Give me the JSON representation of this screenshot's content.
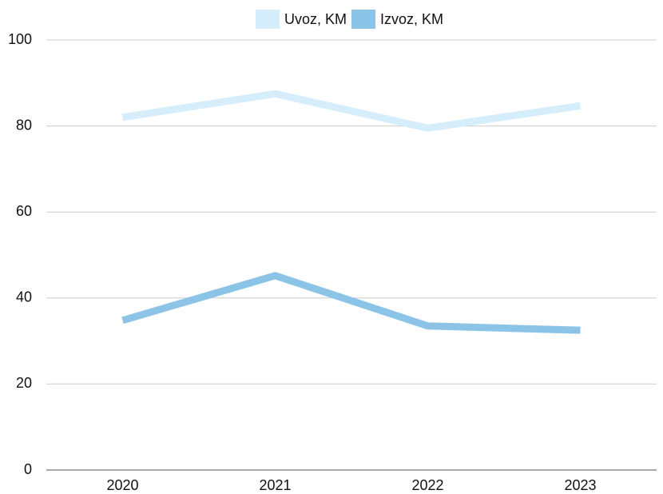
{
  "chart_data": {
    "type": "line",
    "categories": [
      "2020",
      "2021",
      "2022",
      "2023"
    ],
    "series": [
      {
        "name": "Uvoz, KM",
        "color": "#d6edfb",
        "values": [
          82,
          87.5,
          79.5,
          84.7
        ]
      },
      {
        "name": "Izvoz, KM",
        "color": "#8cc4e8",
        "values": [
          34.8,
          45.2,
          33.5,
          32.5
        ]
      }
    ],
    "ylim": [
      0,
      100
    ],
    "yticks": [
      0,
      20,
      40,
      60,
      80,
      100
    ],
    "grid": true,
    "legend": "top"
  }
}
